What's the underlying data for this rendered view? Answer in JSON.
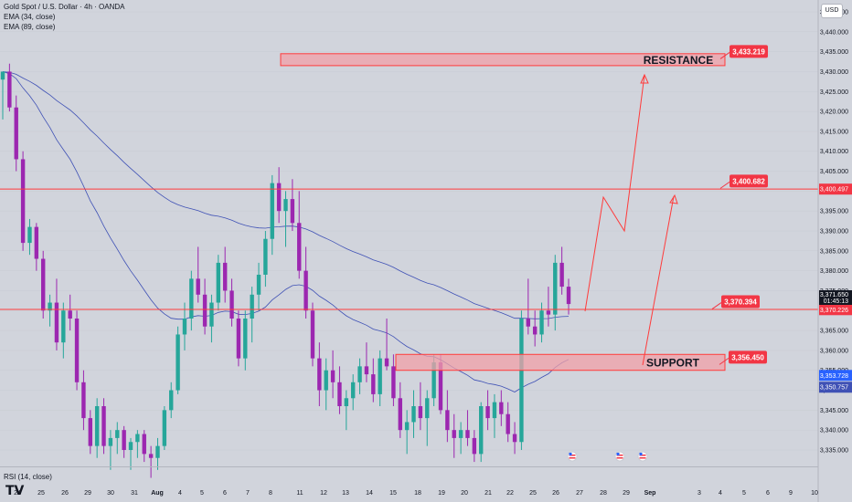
{
  "header": {
    "symbol_title": "Gold Spot / U.S. Dollar · 4h · OANDA",
    "indicator_1": "EMA (34, close)",
    "indicator_2": "EMA (89, close)",
    "currency_button": "USD",
    "rsi_label": "RSI (14, close)",
    "logo": "TV"
  },
  "colors": {
    "background": "#d1d4dc",
    "bull_candle": "#26a69a",
    "bear_candle": "#9c27b0",
    "level_line": "#ff3b3b",
    "zone_fill": "#f0a0a8",
    "label_red": "#f23645",
    "ema": "#3f51b5",
    "blue_tag": "#2962ff"
  },
  "price_axis": {
    "min": 3335,
    "max": 3445,
    "step": 5,
    "current_price": "3,371.650",
    "countdown": "01:45:13",
    "tag_3370": "3,370.226",
    "tag_3400": "3,400.497",
    "tag_ema_34": "3,353.728",
    "tag_ema_89": "3,350.757"
  },
  "time_axis": [
    "24",
    "25",
    "26",
    "29",
    "30",
    "31",
    "Aug",
    "4",
    "5",
    "6",
    "7",
    "8",
    "11",
    "12",
    "13",
    "14",
    "15",
    "18",
    "19",
    "20",
    "21",
    "22",
    "25",
    "26",
    "27",
    "28",
    "29",
    "Sep",
    "3",
    "4",
    "5",
    "6",
    "9",
    "10"
  ],
  "annotations": {
    "resistance_zone": {
      "label": "RESISTANCE",
      "low": 3431.5,
      "high": 3434.5
    },
    "support_zone": {
      "label": "SUPPORT",
      "low": 3355,
      "high": 3359
    },
    "level_callouts": [
      {
        "value": 3433.219,
        "text": "3,433.219"
      },
      {
        "value": 3400.682,
        "text": "3,400.682"
      },
      {
        "value": 3370.394,
        "text": "3,370.394"
      },
      {
        "value": 3356.45,
        "text": "3,356.450"
      }
    ],
    "horizontal_lines": [
      3400.5,
      3370.3
    ]
  },
  "chart_data": {
    "type": "candlestick",
    "title": "Gold Spot / U.S. Dollar · 4h · OANDA",
    "ylim": [
      3333,
      3447
    ],
    "candles": [
      [
        3428,
        3430,
        3418,
        3430
      ],
      [
        3430,
        3432,
        3420,
        3421
      ],
      [
        3421,
        3424,
        3405,
        3408
      ],
      [
        3408,
        3410,
        3385,
        3387
      ],
      [
        3387,
        3393,
        3384,
        3391
      ],
      [
        3391,
        3392,
        3380,
        3383
      ],
      [
        3383,
        3385,
        3368,
        3370
      ],
      [
        3370,
        3374,
        3366,
        3372
      ],
      [
        3372,
        3378,
        3360,
        3362
      ],
      [
        3362,
        3372,
        3358,
        3370
      ],
      [
        3370,
        3374,
        3365,
        3368
      ],
      [
        3368,
        3370,
        3350,
        3352
      ],
      [
        3352,
        3355,
        3340,
        3343
      ],
      [
        3343,
        3345,
        3334,
        3336
      ],
      [
        3336,
        3348,
        3333,
        3346
      ],
      [
        3346,
        3348,
        3334,
        3336
      ],
      [
        3336,
        3340,
        3330,
        3338
      ],
      [
        3338,
        3342,
        3334,
        3340
      ],
      [
        3340,
        3341,
        3333,
        3335
      ],
      [
        3335,
        3338,
        3330,
        3337
      ],
      [
        3337,
        3340,
        3333,
        3339
      ],
      [
        3339,
        3340,
        3332,
        3334
      ],
      [
        3334,
        3336,
        3328,
        3333
      ],
      [
        3333,
        3338,
        3330,
        3336
      ],
      [
        3336,
        3346,
        3335,
        3345
      ],
      [
        3345,
        3352,
        3343,
        3350
      ],
      [
        3350,
        3366,
        3349,
        3364
      ],
      [
        3364,
        3372,
        3360,
        3368
      ],
      [
        3368,
        3380,
        3365,
        3378
      ],
      [
        3378,
        3386,
        3372,
        3374
      ],
      [
        3374,
        3378,
        3364,
        3366
      ],
      [
        3366,
        3374,
        3362,
        3372
      ],
      [
        3372,
        3384,
        3370,
        3382
      ],
      [
        3382,
        3386,
        3372,
        3375
      ],
      [
        3375,
        3378,
        3366,
        3368
      ],
      [
        3368,
        3370,
        3356,
        3358
      ],
      [
        3358,
        3370,
        3355,
        3368
      ],
      [
        3368,
        3376,
        3362,
        3374
      ],
      [
        3374,
        3382,
        3370,
        3379
      ],
      [
        3379,
        3390,
        3376,
        3388
      ],
      [
        3388,
        3404,
        3384,
        3402
      ],
      [
        3402,
        3406,
        3392,
        3395
      ],
      [
        3395,
        3400,
        3386,
        3398
      ],
      [
        3398,
        3403,
        3390,
        3392
      ],
      [
        3392,
        3400,
        3378,
        3380
      ],
      [
        3380,
        3386,
        3368,
        3370
      ],
      [
        3370,
        3372,
        3356,
        3358
      ],
      [
        3358,
        3362,
        3346,
        3350
      ],
      [
        3350,
        3358,
        3345,
        3355
      ],
      [
        3355,
        3360,
        3348,
        3352
      ],
      [
        3352,
        3356,
        3344,
        3346
      ],
      [
        3346,
        3350,
        3340,
        3348
      ],
      [
        3348,
        3354,
        3345,
        3352
      ],
      [
        3352,
        3358,
        3349,
        3356
      ],
      [
        3356,
        3362,
        3352,
        3354
      ],
      [
        3354,
        3358,
        3347,
        3349
      ],
      [
        3349,
        3360,
        3346,
        3358
      ],
      [
        3358,
        3368,
        3355,
        3356
      ],
      [
        3356,
        3359,
        3346,
        3348
      ],
      [
        3348,
        3352,
        3338,
        3340
      ],
      [
        3340,
        3345,
        3334,
        3342
      ],
      [
        3342,
        3350,
        3338,
        3346
      ],
      [
        3346,
        3352,
        3340,
        3343
      ],
      [
        3343,
        3350,
        3336,
        3348
      ],
      [
        3348,
        3359,
        3346,
        3357
      ],
      [
        3357,
        3359,
        3344,
        3345
      ],
      [
        3345,
        3350,
        3337,
        3340
      ],
      [
        3340,
        3344,
        3333,
        3338
      ],
      [
        3338,
        3342,
        3334,
        3340
      ],
      [
        3340,
        3345,
        3336,
        3338
      ],
      [
        3338,
        3340,
        3332,
        3334
      ],
      [
        3334,
        3347,
        3332,
        3346
      ],
      [
        3346,
        3350,
        3340,
        3343
      ],
      [
        3343,
        3349,
        3338,
        3347
      ],
      [
        3347,
        3350,
        3341,
        3344
      ],
      [
        3344,
        3347,
        3337,
        3339
      ],
      [
        3339,
        3342,
        3334,
        3337
      ],
      [
        3337,
        3370,
        3335,
        3368
      ],
      [
        3368,
        3378,
        3364,
        3366
      ],
      [
        3366,
        3370,
        3361,
        3364
      ],
      [
        3364,
        3372,
        3362,
        3370
      ],
      [
        3370,
        3376,
        3366,
        3369
      ],
      [
        3369,
        3384,
        3365,
        3382
      ],
      [
        3382,
        3386,
        3374,
        3376
      ],
      [
        3376,
        3378,
        3369,
        3371.65
      ]
    ]
  }
}
